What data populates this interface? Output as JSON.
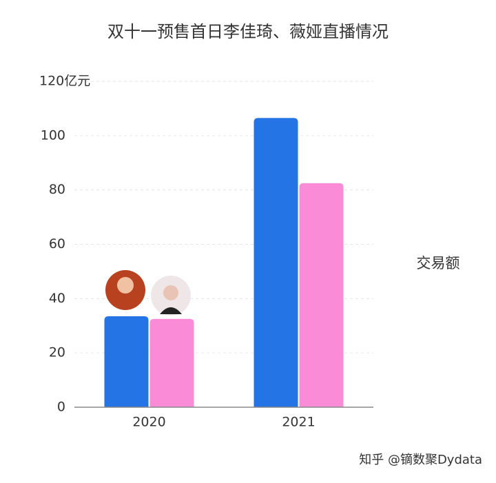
{
  "chart_data": {
    "type": "bar",
    "title": "双十一预售首日李佳琦、薇娅直播情况",
    "categories": [
      "2020",
      "2021"
    ],
    "series": [
      {
        "color": "#2474e5",
        "values": [
          33.5,
          106.5
        ]
      },
      {
        "color": "#f98bd7",
        "values": [
          32.5,
          82.5
        ]
      }
    ],
    "y_label": "交易额",
    "ylim": [
      0,
      120
    ],
    "yticks": [
      0,
      20,
      40,
      60,
      80,
      100,
      {
        "value": 120,
        "label": "120亿元"
      }
    ],
    "grid": true,
    "credit": "知乎 @镝数聚Dydata"
  }
}
